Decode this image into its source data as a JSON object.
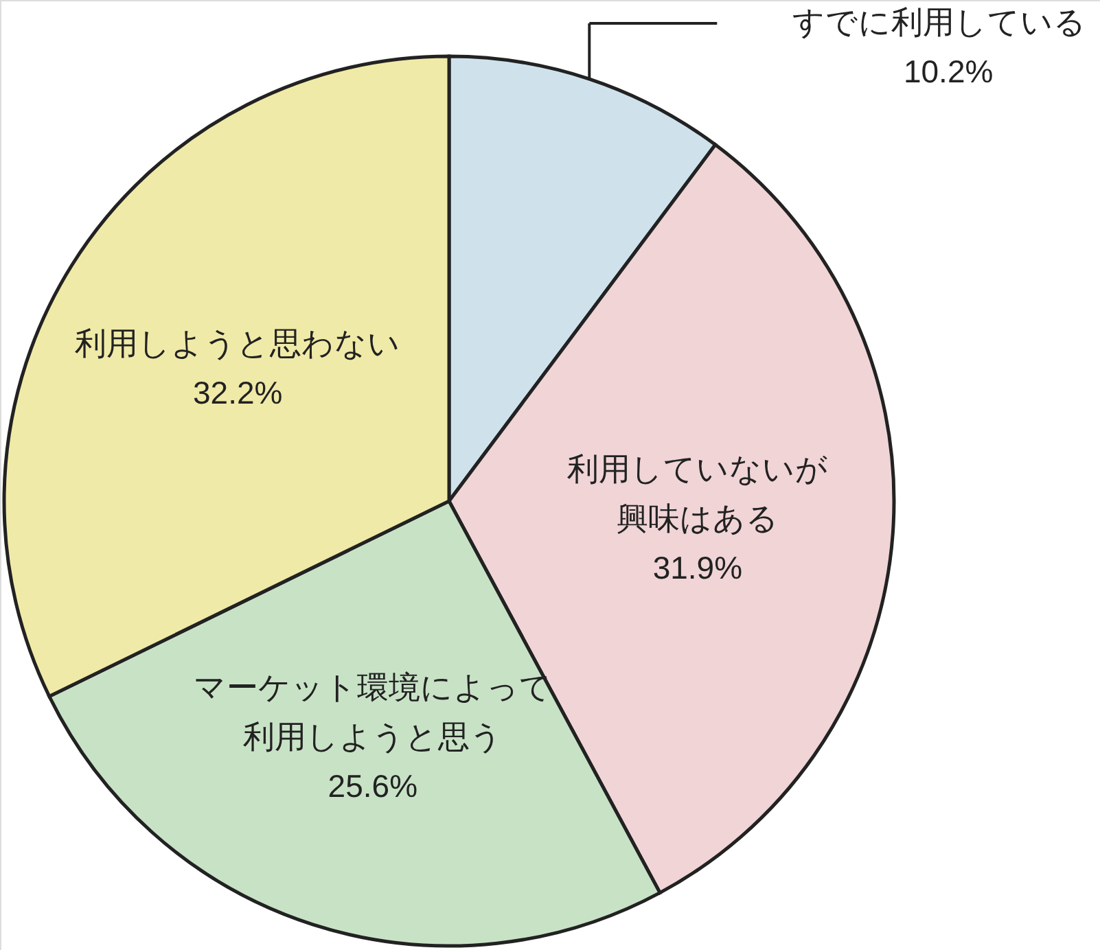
{
  "chart_data": {
    "type": "pie",
    "categories": [
      "すでに利用している",
      "利用していないが興味はある",
      "マーケット環境によって利用しようと思う",
      "利用しようと思わない"
    ],
    "values": [
      10.2,
      31.9,
      25.6,
      32.2
    ],
    "value_labels": [
      "10.2%",
      "31.9%",
      "25.6%",
      "32.2%"
    ],
    "colors": [
      "#cfe2ec",
      "#f0d4d6",
      "#c8e2c6",
      "#f0eaa8"
    ],
    "legend": "top right"
  }
}
